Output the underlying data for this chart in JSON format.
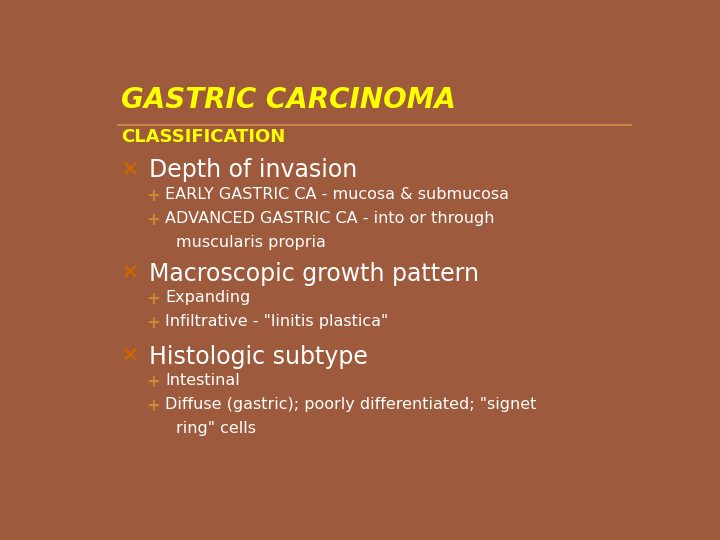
{
  "background_color": "#9e5a3c",
  "title": "GASTRIC CARCINOMA",
  "title_color": "#ffff00",
  "subtitle": "CLASSIFICATION",
  "subtitle_color": "#ffff00",
  "divider_color": "#c8864a",
  "bullet_color": "#cc6600",
  "bullet_char": "×",
  "sub_bullet_char": "+",
  "sub_bullet_color": "#cc8833",
  "main_text_color": "#ffffff",
  "sub_text_color": "#ffffff",
  "items": [
    {
      "main": "Depth of invasion",
      "subs": [
        [
          "EARLY GASTRIC CA - mucosa & submucosa"
        ],
        [
          "ADVANCED GASTRIC CA - into or through",
          "muscularis propria"
        ]
      ]
    },
    {
      "main": "Macroscopic growth pattern",
      "subs": [
        [
          "Expanding"
        ],
        [
          "Infiltrative - \"linitis plastica\""
        ]
      ]
    },
    {
      "main": "Histologic subtype",
      "subs": [
        [
          "Intestinal"
        ],
        [
          "Diffuse (gastric); poorly differentiated; \"signet",
          "ring\" cells"
        ]
      ]
    }
  ]
}
